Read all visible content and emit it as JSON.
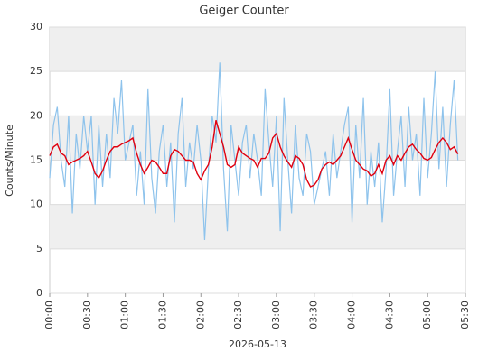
{
  "chart_data": {
    "type": "line",
    "title": "Geiger Counter",
    "xlabel": "2026-05-13",
    "ylabel": "Counts/Minute",
    "x": [
      0,
      3,
      6,
      9,
      12,
      15,
      18,
      21,
      24,
      27,
      30,
      33,
      36,
      39,
      42,
      45,
      48,
      51,
      54,
      57,
      60,
      63,
      66,
      69,
      72,
      75,
      78,
      81,
      84,
      87,
      90,
      93,
      96,
      99,
      102,
      105,
      108,
      111,
      114,
      117,
      120,
      123,
      126,
      129,
      132,
      135,
      138,
      141,
      144,
      147,
      150,
      153,
      156,
      159,
      162,
      165,
      168,
      171,
      174,
      177,
      180,
      183,
      186,
      189,
      192,
      195,
      198,
      201,
      204,
      207,
      210,
      213,
      216,
      219,
      222,
      225,
      228,
      231,
      234,
      237,
      240,
      243,
      246,
      249,
      252,
      255,
      258,
      261,
      264,
      267,
      270,
      273,
      276,
      279,
      282,
      285,
      288,
      291,
      294,
      297,
      300,
      303,
      306,
      309,
      312,
      315,
      318,
      321,
      324
    ],
    "series": [
      {
        "color": "#8ec3ec",
        "values": [
          13,
          19,
          21,
          15,
          12,
          20,
          9,
          18,
          14,
          20,
          16,
          20,
          10,
          19,
          12,
          18,
          13,
          22,
          18,
          24,
          15,
          17,
          19,
          11,
          16,
          10,
          23,
          13,
          9,
          16,
          19,
          12,
          17,
          8,
          18,
          22,
          12,
          17,
          14,
          19,
          15,
          6,
          14,
          20,
          17,
          26,
          14,
          7,
          19,
          15,
          11,
          17,
          19,
          13,
          18,
          15,
          11,
          23,
          17,
          12,
          20,
          7,
          22,
          15,
          9,
          19,
          13,
          11,
          18,
          16,
          10,
          12,
          14,
          16,
          11,
          18,
          13,
          16,
          19,
          21,
          8,
          19,
          13,
          22,
          10,
          16,
          12,
          17,
          8,
          14,
          23,
          11,
          16,
          20,
          12,
          21,
          15,
          18,
          11,
          22,
          13,
          18,
          25,
          14,
          21,
          12,
          19,
          24,
          15
        ]
      },
      {
        "color": "#e0000f",
        "values": [
          15.5,
          16.5,
          16.8,
          15.8,
          15.5,
          14.5,
          14.8,
          15,
          15.2,
          15.5,
          16,
          14.8,
          13.5,
          13,
          13.8,
          15,
          16,
          16.5,
          16.5,
          16.8,
          17,
          17.2,
          17.5,
          15.8,
          14.5,
          13.5,
          14.2,
          15,
          14.8,
          14.2,
          13.5,
          13.5,
          15.5,
          16.2,
          16,
          15.5,
          15,
          15,
          14.8,
          13.5,
          12.8,
          13.8,
          14.5,
          16.5,
          19.5,
          18,
          16.5,
          14.5,
          14.2,
          14.5,
          16.5,
          15.8,
          15.5,
          15.2,
          15,
          14.2,
          15.2,
          15.2,
          15.8,
          17.5,
          18,
          16.5,
          15.5,
          14.8,
          14.2,
          15.5,
          15.2,
          14.5,
          12.8,
          12,
          12.2,
          12.8,
          14,
          14.5,
          14.8,
          14.5,
          15,
          15.5,
          16.5,
          17.5,
          16.2,
          15,
          14.5,
          14,
          13.8,
          13.2,
          13.5,
          14.5,
          13.5,
          15,
          15.5,
          14.5,
          15.5,
          15,
          15.8,
          16.5,
          16.8,
          16.2,
          15.8,
          15.2,
          15,
          15.3,
          16.2,
          17,
          17.5,
          17,
          16.2,
          16.5,
          15.7
        ]
      }
    ],
    "xlim": [
      0,
      330
    ],
    "xticks": [
      {
        "value": 0,
        "label": "00:00"
      },
      {
        "value": 30,
        "label": "00:30"
      },
      {
        "value": 60,
        "label": "01:00"
      },
      {
        "value": 90,
        "label": "01:30"
      },
      {
        "value": 120,
        "label": "02:00"
      },
      {
        "value": 150,
        "label": "02:30"
      },
      {
        "value": 180,
        "label": "03:00"
      },
      {
        "value": 210,
        "label": "03:30"
      },
      {
        "value": 240,
        "label": "04:00"
      },
      {
        "value": 270,
        "label": "04:30"
      },
      {
        "value": 300,
        "label": "05:00"
      },
      {
        "value": 330,
        "label": "05:30"
      }
    ],
    "ylim": [
      0,
      30
    ],
    "yticks": [
      0,
      5,
      10,
      15,
      20,
      25,
      30
    ],
    "grid": true
  }
}
